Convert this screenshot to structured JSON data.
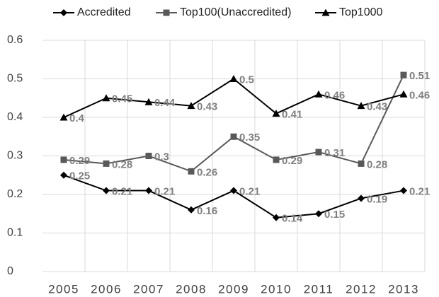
{
  "chart_data": {
    "type": "line",
    "categories": [
      "2005",
      "2006",
      "2007",
      "2008",
      "2009",
      "2010",
      "2011",
      "2012",
      "2013"
    ],
    "series": [
      {
        "name": "Accredited",
        "color": "#000000",
        "marker": "diamond",
        "values": [
          0.25,
          0.21,
          0.21,
          0.16,
          0.21,
          0.14,
          0.15,
          0.19,
          0.21
        ]
      },
      {
        "name": "Top100(Unaccredited)",
        "color": "#595959",
        "marker": "square",
        "values": [
          0.29,
          0.28,
          0.3,
          0.26,
          0.35,
          0.29,
          0.31,
          0.28,
          0.51
        ]
      },
      {
        "name": "Top1000",
        "color": "#000000",
        "marker": "triangle",
        "values": [
          0.4,
          0.45,
          0.44,
          0.43,
          0.5,
          0.41,
          0.46,
          0.43,
          0.46
        ]
      }
    ],
    "ylim": [
      0,
      0.6
    ],
    "yticks": [
      0,
      0.1,
      0.2,
      0.3,
      0.4,
      0.5,
      0.6
    ],
    "grid": true,
    "legend": "top"
  }
}
